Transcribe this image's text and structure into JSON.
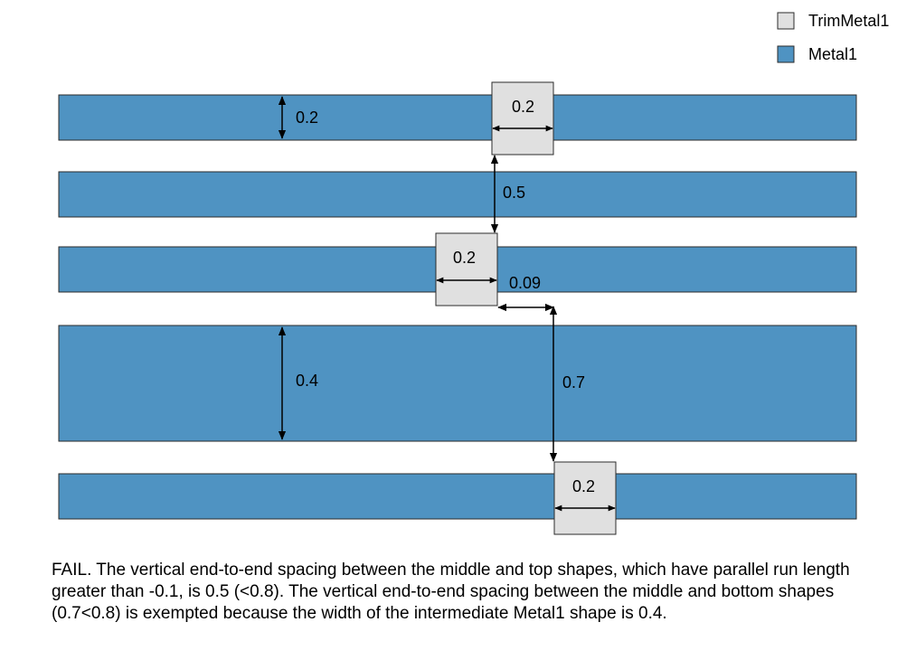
{
  "legend": [
    {
      "label": "TrimMetal1",
      "color": "#e0e0e0"
    },
    {
      "label": "Metal1",
      "color": "#4f93c2"
    }
  ],
  "labels": {
    "metal_width_top": "0.2",
    "trim_width_top": "0.2",
    "spacing_top_middle": "0.5",
    "trim_width_middle": "0.2",
    "trim_gap": "0.09",
    "metal_width_wide": "0.4",
    "spacing_middle_bottom": "0.7",
    "trim_width_bottom": "0.2"
  },
  "caption": "FAIL. The vertical end-to-end spacing between the middle and top shapes, which have parallel run length greater than -0.1, is 0.5 (<0.8). The vertical end-to-end spacing between the middle and bottom shapes (0.7<0.8) is exempted because the width of the intermediate Metal1 shape is 0.4.",
  "colors": {
    "metal": "#4f93c2",
    "trim": "#e0e0e0",
    "outline": "#2b2b2b"
  }
}
